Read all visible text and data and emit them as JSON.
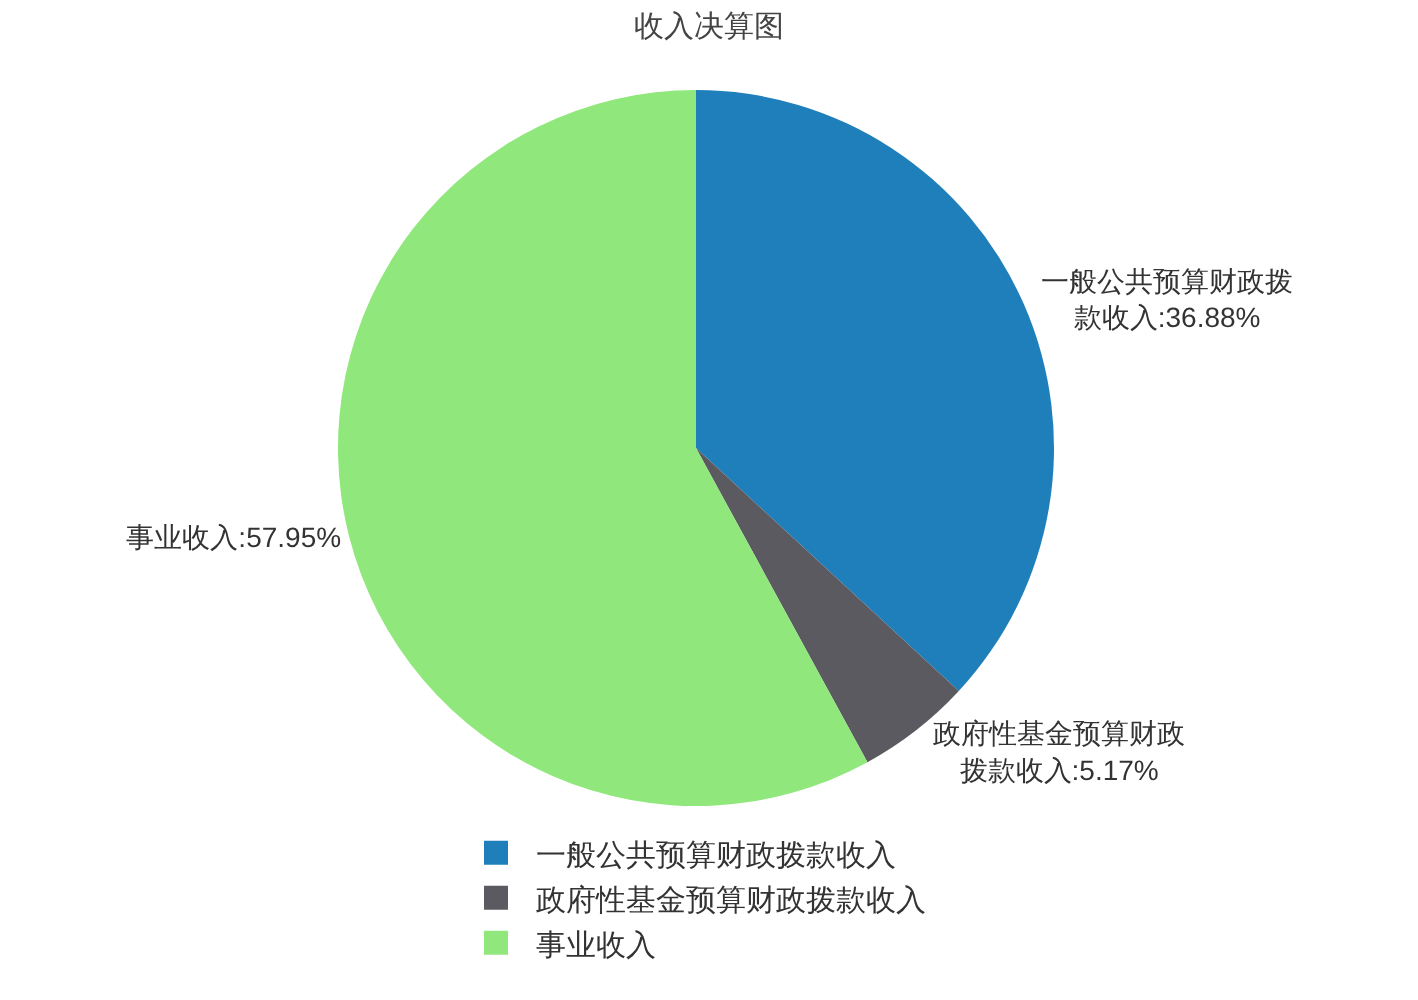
{
  "chart_data": {
    "type": "pie",
    "title": "收入决算图",
    "categories": [
      "一般公共预算财政拨款收入",
      "政府性基金预算财政拨款收入",
      "事业收入"
    ],
    "values": [
      36.88,
      5.17,
      57.95
    ],
    "colors": [
      "#1f7fbb",
      "#5b5a60",
      "#90e87c"
    ],
    "value_labels": [
      "一般公共预算财政拨款收入:36.88%",
      "政府性基金预算财政拨款收入:5.17%",
      "事业收入:57.95%"
    ],
    "legend": "bottom"
  }
}
